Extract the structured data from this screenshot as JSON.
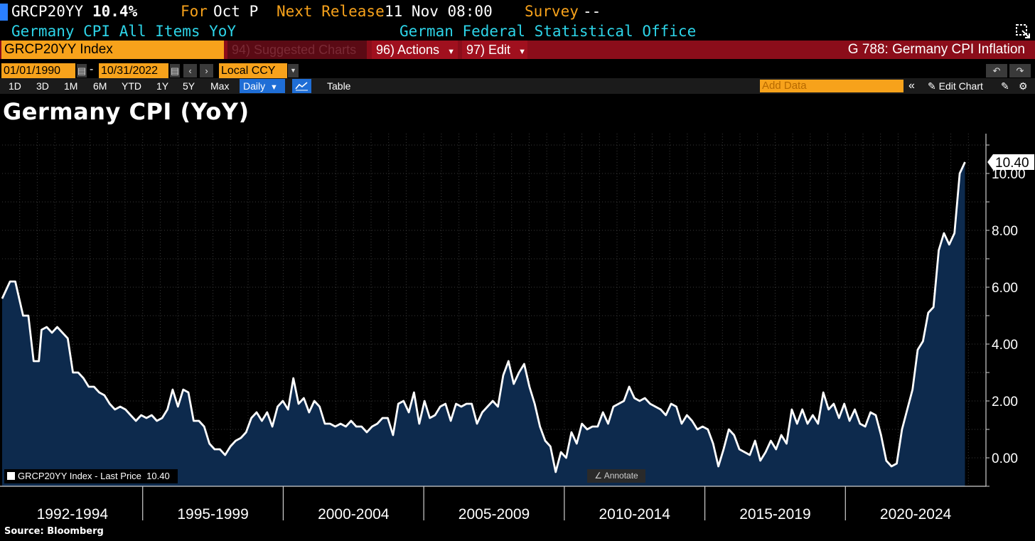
{
  "header": {
    "ticker": "GRCP20YY",
    "last_value": "10.4%",
    "for_label": "For",
    "for_period": "Oct P",
    "next_release_label": "Next Release",
    "next_release_value": "11 Nov 08:00",
    "survey_label": "Survey",
    "survey_value": "--",
    "description": "Germany CPI All Items YoY",
    "source_org": "German Federal Statistical Office"
  },
  "toolbar": {
    "index_label": "GRCP20YY Index",
    "suggested": "94) Suggested Charts",
    "actions": "96) Actions",
    "edit": "97) Edit",
    "page_title": "G 788: Germany CPI Inflation",
    "start_date": "01/01/1990",
    "end_date": "10/31/2022",
    "date_sep": "-",
    "currency": "Local CCY",
    "ranges": [
      "1D",
      "3D",
      "1M",
      "6M",
      "YTD",
      "1Y",
      "5Y",
      "Max"
    ],
    "frequency": "Daily",
    "table_label": "Table",
    "add_data_placeholder": "Add Data",
    "edit_chart": "Edit Chart"
  },
  "colors": {
    "accent_orange": "#f7a21b",
    "toolbar_red": "#8b0d1a",
    "cyan_text": "#2dd4e8",
    "line": "#ffffff",
    "area_fill": "#0d2a4d"
  },
  "chart_data": {
    "type": "area",
    "title": "Germany CPI (YoY)",
    "series": [
      {
        "name": "GRCP20YY Index - Last Price",
        "last_value": "10.40",
        "points": [
          [
            1991.0,
            5.6
          ],
          [
            1991.3,
            6.2
          ],
          [
            1991.5,
            6.2
          ],
          [
            1991.8,
            5.0
          ],
          [
            1992.0,
            5.0
          ],
          [
            1992.2,
            3.4
          ],
          [
            1992.4,
            3.4
          ],
          [
            1992.5,
            4.5
          ],
          [
            1992.7,
            4.6
          ],
          [
            1992.9,
            4.4
          ],
          [
            1993.1,
            4.6
          ],
          [
            1993.3,
            4.4
          ],
          [
            1993.5,
            4.2
          ],
          [
            1993.7,
            3.0
          ],
          [
            1993.9,
            3.0
          ],
          [
            1994.1,
            2.8
          ],
          [
            1994.3,
            2.5
          ],
          [
            1994.5,
            2.5
          ],
          [
            1994.7,
            2.3
          ],
          [
            1994.9,
            2.2
          ],
          [
            1995.1,
            1.9
          ],
          [
            1995.3,
            1.7
          ],
          [
            1995.5,
            1.8
          ],
          [
            1995.7,
            1.7
          ],
          [
            1995.9,
            1.5
          ],
          [
            1996.1,
            1.3
          ],
          [
            1996.3,
            1.5
          ],
          [
            1996.5,
            1.4
          ],
          [
            1996.7,
            1.5
          ],
          [
            1996.9,
            1.3
          ],
          [
            1997.1,
            1.4
          ],
          [
            1997.3,
            1.7
          ],
          [
            1997.5,
            2.4
          ],
          [
            1997.7,
            1.8
          ],
          [
            1997.9,
            2.4
          ],
          [
            1998.1,
            2.3
          ],
          [
            1998.3,
            1.3
          ],
          [
            1998.5,
            1.3
          ],
          [
            1998.7,
            1.1
          ],
          [
            1998.9,
            0.5
          ],
          [
            1999.1,
            0.3
          ],
          [
            1999.3,
            0.3
          ],
          [
            1999.5,
            0.1
          ],
          [
            1999.7,
            0.4
          ],
          [
            1999.9,
            0.6
          ],
          [
            2000.1,
            0.7
          ],
          [
            2000.3,
            0.9
          ],
          [
            2000.5,
            1.4
          ],
          [
            2000.7,
            1.6
          ],
          [
            2000.9,
            1.3
          ],
          [
            2001.1,
            1.6
          ],
          [
            2001.3,
            1.1
          ],
          [
            2001.5,
            1.8
          ],
          [
            2001.7,
            2.0
          ],
          [
            2001.9,
            1.7
          ],
          [
            2002.1,
            2.8
          ],
          [
            2002.3,
            1.9
          ],
          [
            2002.5,
            2.1
          ],
          [
            2002.7,
            1.6
          ],
          [
            2002.9,
            2.0
          ],
          [
            2003.1,
            1.8
          ],
          [
            2003.3,
            1.2
          ],
          [
            2003.5,
            1.2
          ],
          [
            2003.7,
            1.1
          ],
          [
            2003.9,
            1.2
          ],
          [
            2004.1,
            1.1
          ],
          [
            2004.3,
            1.3
          ],
          [
            2004.5,
            1.1
          ],
          [
            2004.7,
            1.1
          ],
          [
            2004.9,
            0.9
          ],
          [
            2005.1,
            1.1
          ],
          [
            2005.3,
            1.2
          ],
          [
            2005.5,
            1.4
          ],
          [
            2005.7,
            1.4
          ],
          [
            2005.9,
            0.8
          ],
          [
            2006.1,
            1.9
          ],
          [
            2006.3,
            2.0
          ],
          [
            2006.5,
            1.6
          ],
          [
            2006.7,
            2.3
          ],
          [
            2006.9,
            1.2
          ],
          [
            2007.1,
            2.0
          ],
          [
            2007.3,
            1.4
          ],
          [
            2007.5,
            1.5
          ],
          [
            2007.7,
            1.8
          ],
          [
            2007.9,
            1.9
          ],
          [
            2008.1,
            1.3
          ],
          [
            2008.3,
            1.9
          ],
          [
            2008.5,
            1.8
          ],
          [
            2008.7,
            1.9
          ],
          [
            2008.9,
            1.9
          ],
          [
            2009.1,
            1.2
          ],
          [
            2009.3,
            1.6
          ],
          [
            2009.5,
            1.8
          ],
          [
            2009.7,
            2.0
          ],
          [
            2009.9,
            1.8
          ],
          [
            2010.1,
            2.9
          ],
          [
            2010.3,
            3.4
          ],
          [
            2010.5,
            2.6
          ],
          [
            2010.7,
            3.0
          ],
          [
            2010.9,
            3.3
          ],
          [
            2011.1,
            2.5
          ],
          [
            2011.3,
            1.9
          ],
          [
            2011.5,
            1.1
          ],
          [
            2011.7,
            0.6
          ],
          [
            2011.9,
            0.4
          ],
          [
            2012.1,
            -0.5
          ],
          [
            2012.3,
            0.2
          ],
          [
            2012.5,
            0.0
          ],
          [
            2012.7,
            0.9
          ],
          [
            2012.9,
            0.5
          ],
          [
            2013.1,
            1.2
          ],
          [
            2013.3,
            1.0
          ],
          [
            2013.5,
            1.1
          ],
          [
            2013.7,
            1.1
          ],
          [
            2013.9,
            1.6
          ],
          [
            2014.1,
            1.2
          ],
          [
            2014.3,
            1.8
          ],
          [
            2014.5,
            1.9
          ],
          [
            2014.7,
            2.0
          ],
          [
            2014.9,
            2.5
          ],
          [
            2015.1,
            2.1
          ],
          [
            2015.3,
            2.0
          ],
          [
            2015.5,
            2.1
          ],
          [
            2015.7,
            1.9
          ],
          [
            2015.9,
            1.8
          ],
          [
            2016.1,
            1.7
          ],
          [
            2016.3,
            1.5
          ],
          [
            2016.5,
            1.9
          ],
          [
            2016.7,
            1.8
          ],
          [
            2016.9,
            1.2
          ],
          [
            2017.1,
            1.5
          ],
          [
            2017.3,
            1.3
          ],
          [
            2017.5,
            1.0
          ],
          [
            2017.7,
            1.1
          ],
          [
            2017.9,
            1.0
          ],
          [
            2018.1,
            0.5
          ],
          [
            2018.3,
            -0.3
          ],
          [
            2018.5,
            0.3
          ],
          [
            2018.7,
            1.0
          ],
          [
            2018.9,
            0.8
          ],
          [
            2019.1,
            0.3
          ],
          [
            2019.3,
            0.2
          ],
          [
            2019.5,
            0.1
          ],
          [
            2019.7,
            0.6
          ],
          [
            2019.9,
            -0.1
          ],
          [
            2020.1,
            0.2
          ],
          [
            2020.3,
            0.6
          ],
          [
            2020.5,
            0.3
          ],
          [
            2020.7,
            0.8
          ],
          [
            2020.9,
            0.5
          ],
          [
            2021.1,
            1.7
          ],
          [
            2021.3,
            1.2
          ],
          [
            2021.5,
            1.7
          ],
          [
            2021.7,
            1.2
          ],
          [
            2021.9,
            1.5
          ],
          [
            2022.1,
            1.2
          ],
          [
            2022.3,
            2.3
          ],
          [
            2022.5,
            1.7
          ],
          [
            2022.7,
            1.9
          ],
          [
            2022.9,
            1.4
          ],
          [
            2023.1,
            1.9
          ],
          [
            2023.3,
            1.3
          ],
          [
            2023.5,
            1.7
          ],
          [
            2023.7,
            1.2
          ],
          [
            2023.9,
            1.1
          ],
          [
            2024.1,
            1.6
          ],
          [
            2024.3,
            1.5
          ],
          [
            2024.5,
            0.8
          ],
          [
            2024.7,
            -0.1
          ],
          [
            2024.9,
            -0.3
          ],
          [
            2025.1,
            -0.2
          ],
          [
            2025.3,
            1.0
          ],
          [
            2025.5,
            1.7
          ],
          [
            2025.7,
            2.4
          ],
          [
            2025.9,
            3.8
          ],
          [
            2026.1,
            4.1
          ],
          [
            2026.3,
            5.1
          ],
          [
            2026.5,
            5.3
          ],
          [
            2026.7,
            7.3
          ],
          [
            2026.9,
            7.9
          ],
          [
            2027.1,
            7.5
          ],
          [
            2027.3,
            7.9
          ],
          [
            2027.5,
            10.0
          ],
          [
            2027.7,
            10.4
          ]
        ]
      }
    ],
    "ylim": [
      -1.0,
      11.4
    ],
    "yticks": [
      "0.00",
      "2.00",
      "4.00",
      "6.00",
      "8.00",
      "10.00"
    ],
    "xlim": [
      1991.0,
      2028.5
    ],
    "x_sections": [
      {
        "label": "1992-1994"
      },
      {
        "label": "1995-1999"
      },
      {
        "label": "2000-2004"
      },
      {
        "label": "2005-2009"
      },
      {
        "label": "2010-2014"
      },
      {
        "label": "2015-2019"
      },
      {
        "label": "2020-2024"
      }
    ],
    "legend_label": "GRCP20YY Index - Last Price",
    "legend_value": "10.40",
    "annotate_label": "Annotate",
    "grid": true
  },
  "footer": {
    "source": "Source: Bloomberg"
  }
}
